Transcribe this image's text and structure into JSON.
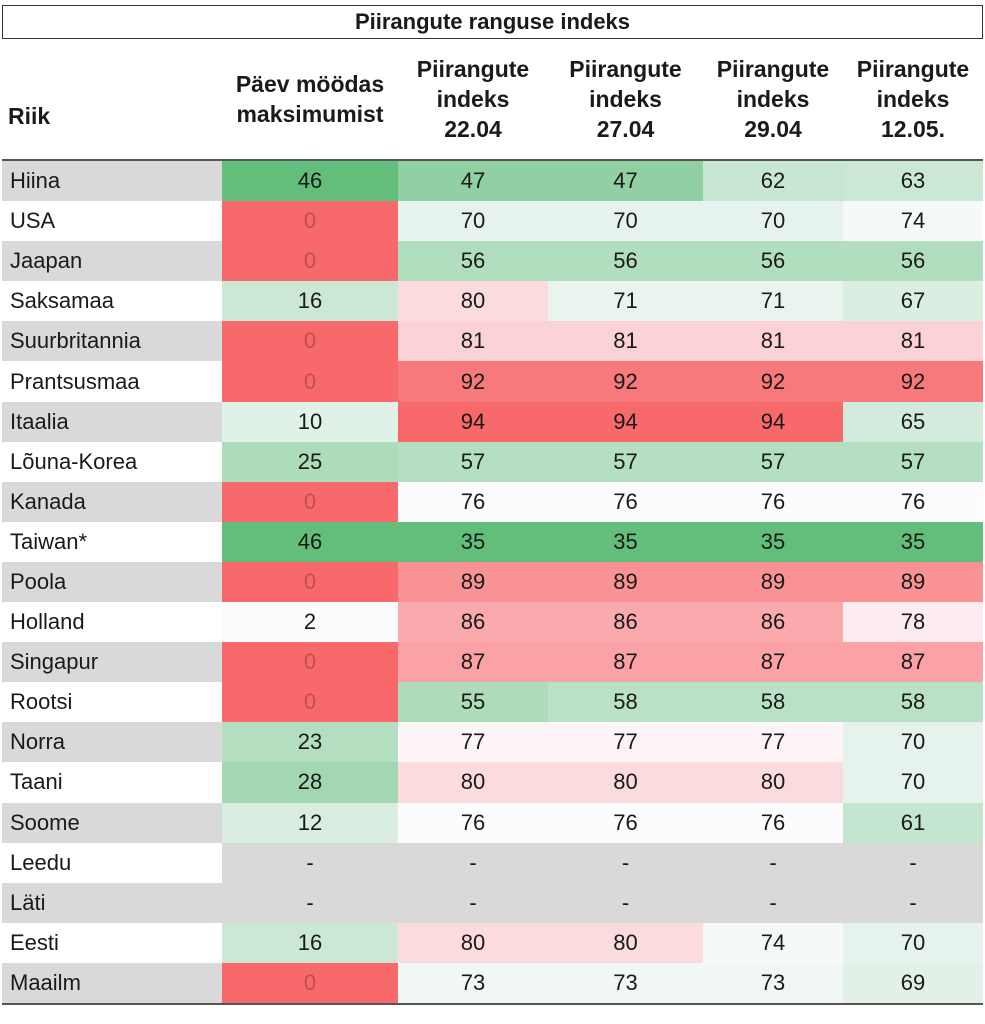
{
  "chart_data": {
    "type": "table",
    "title": "Piirangute ranguse indeks",
    "columns": [
      [
        "Riik"
      ],
      [
        "Päev möödas",
        "maksimumist"
      ],
      [
        "Piirangute",
        "indeks",
        "22.04"
      ],
      [
        "Piirangute",
        "indeks",
        "27.04"
      ],
      [
        "Piirangute",
        "indeks",
        "29.04"
      ],
      [
        "Piirangute",
        "indeks",
        "12.05."
      ]
    ],
    "rows": [
      {
        "country": "Hiina",
        "values": [
          "46",
          "47",
          "47",
          "62",
          "63"
        ]
      },
      {
        "country": "USA",
        "values": [
          "0",
          "70",
          "70",
          "70",
          "74"
        ]
      },
      {
        "country": "Jaapan",
        "values": [
          "0",
          "56",
          "56",
          "56",
          "56"
        ]
      },
      {
        "country": "Saksamaa",
        "values": [
          "16",
          "80",
          "71",
          "71",
          "67"
        ]
      },
      {
        "country": "Suurbritannia",
        "values": [
          "0",
          "81",
          "81",
          "81",
          "81"
        ]
      },
      {
        "country": "Prantsusmaa",
        "values": [
          "0",
          "92",
          "92",
          "92",
          "92"
        ]
      },
      {
        "country": "Itaalia",
        "values": [
          "10",
          "94",
          "94",
          "94",
          "65"
        ]
      },
      {
        "country": "Lõuna-Korea",
        "values": [
          "25",
          "57",
          "57",
          "57",
          "57"
        ]
      },
      {
        "country": "Kanada",
        "values": [
          "0",
          "76",
          "76",
          "76",
          "76"
        ]
      },
      {
        "country": "Taiwan*",
        "values": [
          "46",
          "35",
          "35",
          "35",
          "35"
        ]
      },
      {
        "country": "Poola",
        "values": [
          "0",
          "89",
          "89",
          "89",
          "89"
        ]
      },
      {
        "country": "Holland",
        "values": [
          "2",
          "86",
          "86",
          "86",
          "78"
        ]
      },
      {
        "country": "Singapur",
        "values": [
          "0",
          "87",
          "87",
          "87",
          "87"
        ]
      },
      {
        "country": "Rootsi",
        "values": [
          "0",
          "55",
          "58",
          "58",
          "58"
        ]
      },
      {
        "country": "Norra",
        "values": [
          "23",
          "77",
          "77",
          "77",
          "70"
        ]
      },
      {
        "country": "Taani",
        "values": [
          "28",
          "80",
          "80",
          "80",
          "70"
        ]
      },
      {
        "country": "Soome",
        "values": [
          "12",
          "76",
          "76",
          "76",
          "61"
        ]
      },
      {
        "country": "Leedu",
        "values": [
          "-",
          "-",
          "-",
          "-",
          "-"
        ]
      },
      {
        "country": "Läti",
        "values": [
          "-",
          "-",
          "-",
          "-",
          "-"
        ]
      },
      {
        "country": "Eesti",
        "values": [
          "16",
          "80",
          "80",
          "74",
          "70"
        ]
      },
      {
        "country": "Maailm",
        "values": [
          "0",
          "73",
          "73",
          "73",
          "69"
        ]
      }
    ],
    "colors": {
      "days_high": "#63be7b",
      "days_mid": "#fcfcff",
      "days_low": "#f8696b",
      "zero_value_text": "#c0504d",
      "index_low": "#63be7b",
      "index_mid": "#fcfcff",
      "index_high": "#f8696b",
      "missing": "#d9d9d9",
      "country_band": "#d9d9d9"
    }
  }
}
